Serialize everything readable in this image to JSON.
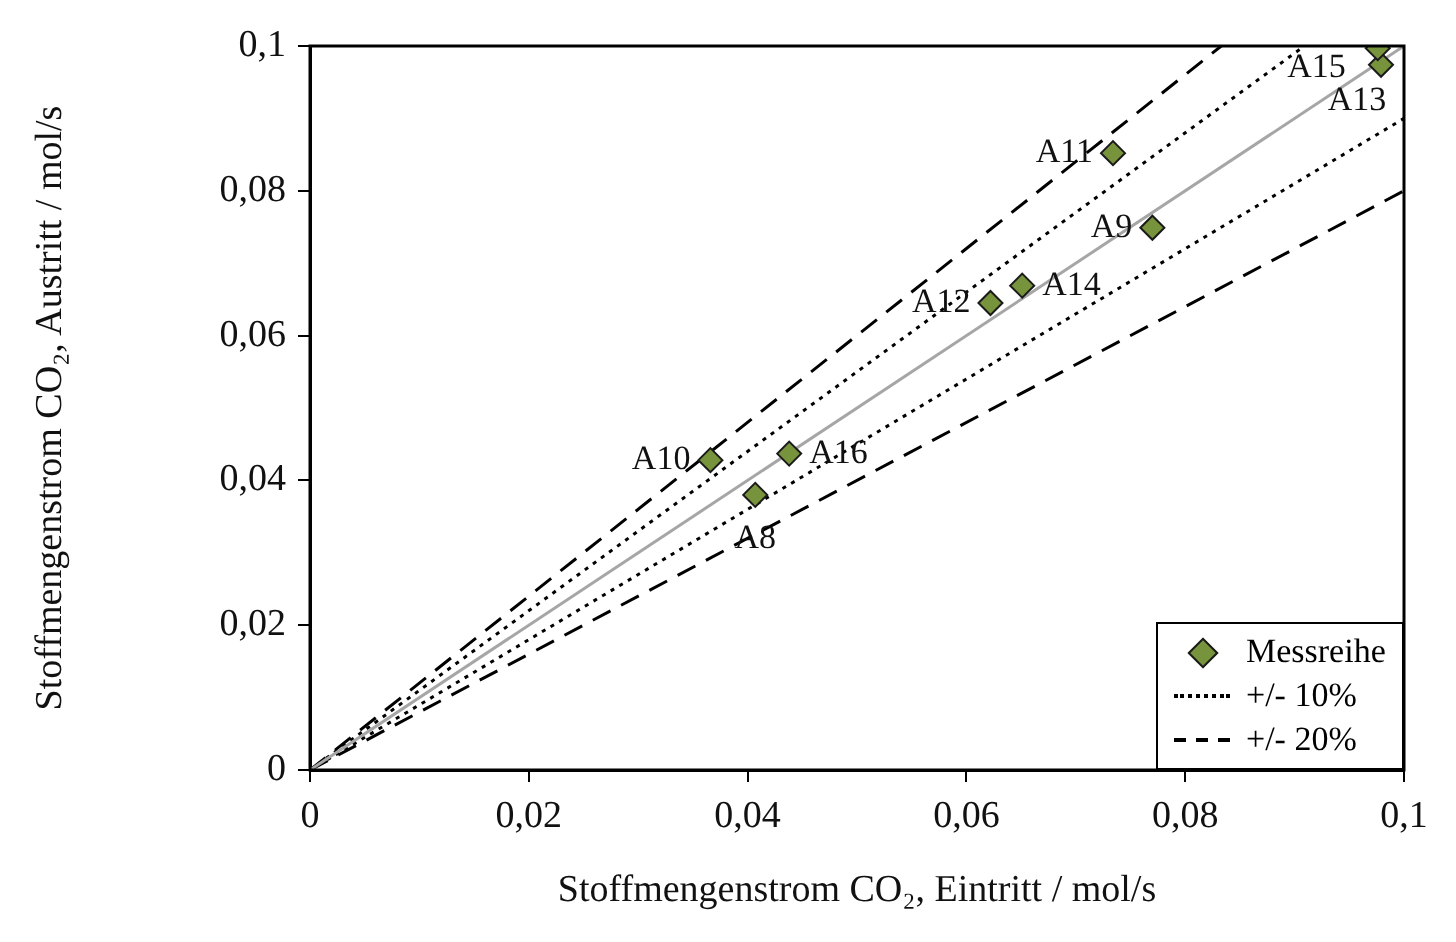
{
  "chart_data": {
    "type": "scatter",
    "xlabel": "Stoffmengenstrom CO₂, Eintritt / mol/s",
    "ylabel": "Stoffmengenstrom CO₂, Austritt / mol/s",
    "xlim": [
      0,
      0.1
    ],
    "ylim": [
      0,
      0.1
    ],
    "xticks": [
      0,
      {
        "value": 0.02,
        "label": "0,02"
      },
      {
        "value": 0.04,
        "label": "0,04"
      },
      {
        "value": 0.06,
        "label": "0,06"
      },
      {
        "value": 0.08,
        "label": "0,08"
      },
      {
        "value": 0.1,
        "label": "0,1"
      }
    ],
    "yticks": [
      0,
      {
        "value": 0.02,
        "label": "0,02"
      },
      {
        "value": 0.04,
        "label": "0,04"
      },
      {
        "value": 0.06,
        "label": "0,06"
      },
      {
        "value": 0.08,
        "label": "0,08"
      },
      {
        "value": 0.1,
        "label": "0,1"
      }
    ],
    "grid": false,
    "legend": "bottom right",
    "marker": "diamond",
    "series": [
      {
        "name": "Messreihe",
        "color": "#77933c",
        "x": [
          0.0407,
          0.077,
          0.0366,
          0.0734,
          0.0622,
          0.0979,
          0.0651,
          0.0976,
          0.0438
        ],
        "values": [
          0.038,
          0.0749,
          0.0428,
          0.0852,
          0.0645,
          0.0974,
          0.0669,
          0.0997,
          0.0437
        ]
      },
      {
        "type": "line",
        "color": "#a6a6a6",
        "line_style": "solid",
        "marker": "none",
        "x": [
          0,
          0.1
        ],
        "values": [
          0,
          0.1
        ]
      },
      {
        "name": "+/- 10%",
        "type": "line",
        "color": "#000000",
        "line_style": "dotted",
        "marker": "none",
        "x": [
          0,
          0.0909
        ],
        "values": [
          0,
          0.1
        ]
      },
      {
        "type": "line",
        "color": "#000000",
        "line_style": "dotted",
        "marker": "none",
        "x": [
          0,
          0.1
        ],
        "values": [
          0,
          0.09
        ]
      },
      {
        "name": "+/- 20%",
        "type": "line",
        "color": "#000000",
        "line_style": "dashed",
        "marker": "none",
        "x": [
          0,
          0.0833
        ],
        "values": [
          0,
          0.1
        ]
      },
      {
        "type": "line",
        "color": "#000000",
        "line_style": "dashed",
        "marker": "none",
        "x": [
          0,
          0.1
        ],
        "values": [
          0,
          0.08
        ]
      }
    ],
    "annotations": [
      {
        "text": "A8",
        "x": 0.0407,
        "y": 0.038
      },
      {
        "text": "A9",
        "x": 0.077,
        "y": 0.0749
      },
      {
        "text": "A10",
        "x": 0.0366,
        "y": 0.0428
      },
      {
        "text": "A11",
        "x": 0.0734,
        "y": 0.0852
      },
      {
        "text": "A12",
        "x": 0.0622,
        "y": 0.0645
      },
      {
        "text": "A13",
        "x": 0.0979,
        "y": 0.0974
      },
      {
        "text": "A14",
        "x": 0.0651,
        "y": 0.0669
      },
      {
        "text": "A15",
        "x": 0.0976,
        "y": 0.0997
      },
      {
        "text": "A16",
        "x": 0.0438,
        "y": 0.0437
      }
    ]
  }
}
